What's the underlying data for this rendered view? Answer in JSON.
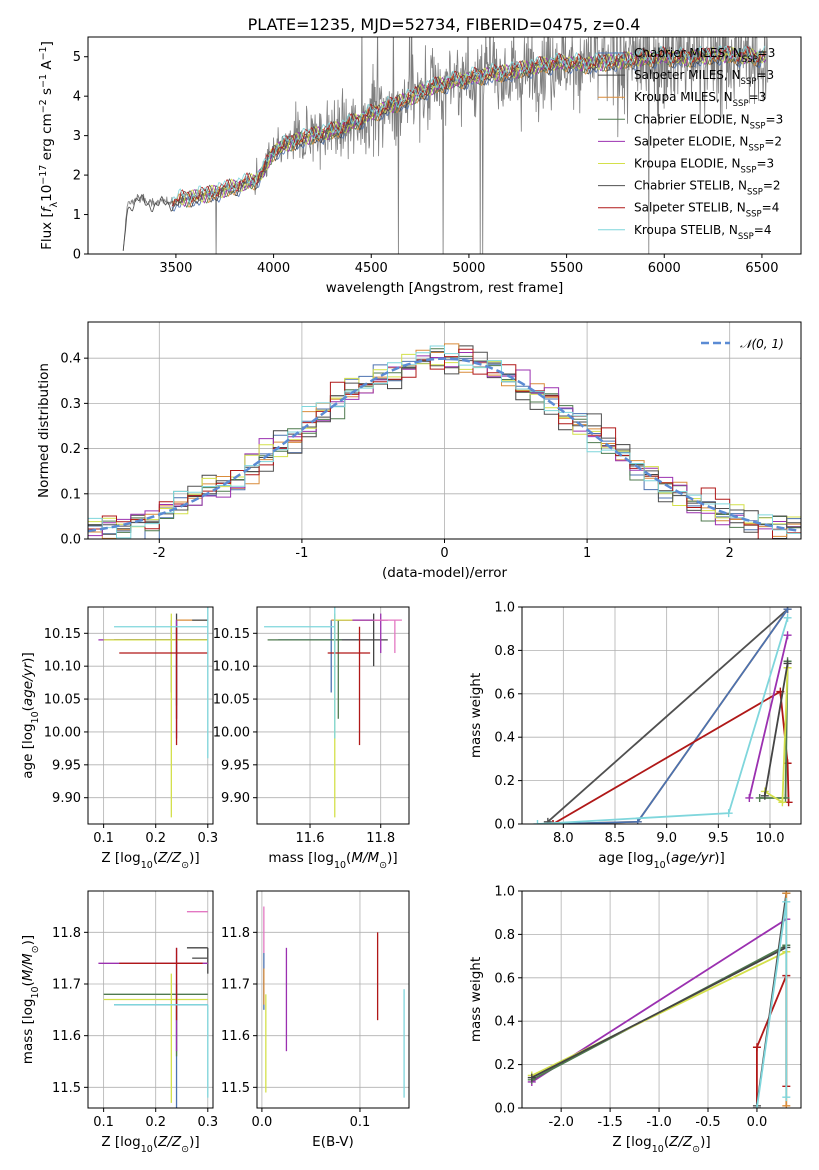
{
  "figure": {
    "title": "PLATE=1235, MJD=52734, FIBERID=0475, z=0.4"
  },
  "series": [
    {
      "name": "Chabrier MILES, N_SSP=3",
      "label_main": "Chabrier MILES, N",
      "label_sub": "SSP",
      "label_end": "=3",
      "color": "#4c72b0"
    },
    {
      "name": "Salpeter MILES, N_SSP=3",
      "label_main": "Salpeter MILES, N",
      "label_sub": "SSP",
      "label_end": "=3",
      "color": "#444444"
    },
    {
      "name": "Kroupa MILES, N_SSP=3",
      "label_main": "Kroupa MILES, N",
      "label_sub": "SSP",
      "label_end": "=3",
      "color": "#d98c3a"
    },
    {
      "name": "Chabrier ELODIE, N_SSP=3",
      "label_main": "Chabrier ELODIE, N",
      "label_sub": "SSP",
      "label_end": "=3",
      "color": "#4f7a4f"
    },
    {
      "name": "Salpeter ELODIE, N_SSP=2",
      "label_main": "Salpeter ELODIE, N",
      "label_sub": "SSP",
      "label_end": "=2",
      "color": "#9b30b0"
    },
    {
      "name": "Kroupa ELODIE, N_SSP=3",
      "label_main": "Kroupa ELODIE, N",
      "label_sub": "SSP",
      "label_end": "=3",
      "color": "#d4e04a"
    },
    {
      "name": "Chabrier STELIB, N_SSP=2",
      "label_main": "Chabrier STELIB, N",
      "label_sub": "SSP",
      "label_end": "=2",
      "color": "#505050"
    },
    {
      "name": "Salpeter STELIB, N_SSP=4",
      "label_main": "Salpeter STELIB, N",
      "label_sub": "SSP",
      "label_end": "=4",
      "color": "#b01818"
    },
    {
      "name": "Kroupa STELIB, N_SSP=4",
      "label_main": "Kroupa STELIB, N",
      "label_sub": "SSP",
      "label_end": "=4",
      "color": "#7fd6dc"
    }
  ],
  "chart_data": [
    {
      "id": "spectrum",
      "type": "line",
      "xlabel": "wavelength [Angstrom, rest frame]",
      "ylabel": "Flux [f_λ 10^-17 erg cm^-2 s^-1 A^-1]",
      "xlim": [
        3050,
        6700
      ],
      "ylim": [
        0,
        5.5
      ],
      "xticks": [
        3500,
        4000,
        4500,
        5000,
        5500,
        6000,
        6500
      ],
      "yticks": [
        0,
        1,
        2,
        3,
        4,
        5
      ],
      "grid": false,
      "legend": "top-right",
      "continuum_points": [
        [
          3230,
          0
        ],
        [
          3250,
          1.25
        ],
        [
          3300,
          1.4
        ],
        [
          3400,
          1.3
        ],
        [
          3500,
          1.35
        ],
        [
          3600,
          1.45
        ],
        [
          3700,
          1.55
        ],
        [
          3800,
          1.7
        ],
        [
          3900,
          1.85
        ],
        [
          3950,
          2.1
        ],
        [
          4000,
          2.6
        ],
        [
          4100,
          2.85
        ],
        [
          4200,
          3.0
        ],
        [
          4300,
          3.1
        ],
        [
          4400,
          3.3
        ],
        [
          4500,
          3.55
        ],
        [
          4600,
          3.75
        ],
        [
          4700,
          3.95
        ],
        [
          4800,
          4.2
        ],
        [
          4900,
          4.35
        ],
        [
          5000,
          4.45
        ],
        [
          5100,
          4.55
        ],
        [
          5200,
          4.6
        ],
        [
          5300,
          4.7
        ],
        [
          5400,
          4.8
        ],
        [
          5500,
          4.85
        ],
        [
          5600,
          4.8
        ],
        [
          5700,
          4.85
        ],
        [
          5800,
          4.9
        ],
        [
          5900,
          4.95
        ],
        [
          6000,
          5.0
        ],
        [
          6100,
          4.95
        ],
        [
          6200,
          5.0
        ],
        [
          6300,
          5.05
        ],
        [
          6400,
          5.0
        ],
        [
          6500,
          5.0
        ]
      ]
    },
    {
      "id": "residuals",
      "type": "line",
      "xlabel": "(data-model)/error",
      "ylabel": "Normed distribution",
      "xlim": [
        -2.5,
        2.5
      ],
      "ylim": [
        0,
        0.48
      ],
      "xticks": [
        -2,
        -1,
        0,
        1,
        2
      ],
      "yticks": [
        0.0,
        0.1,
        0.2,
        0.3,
        0.4
      ],
      "grid": true,
      "legend": "top-right",
      "normal_label": "𝒩(0, 1)",
      "normal_color": "#5b8bd4"
    },
    {
      "id": "age-vs-Z",
      "type": "scatter",
      "xlabel": "Z [log10(Z/Z⊙)]",
      "ylabel": "age  [log10(age/yr)]",
      "xlim": [
        0.07,
        0.31
      ],
      "ylim": [
        9.86,
        10.19
      ],
      "xticks": [
        0.1,
        0.2,
        0.3
      ],
      "yticks": [
        9.9,
        9.95,
        10.0,
        10.05,
        10.1,
        10.15
      ],
      "grid": true,
      "points": [
        {
          "series": 0,
          "x": 0.23,
          "y": 10.14,
          "xerr": [
            0.11,
            0.07
          ],
          "yerr": [
            0.08,
            0.03
          ]
        },
        {
          "series": 1,
          "x": 0.24,
          "y": 10.14,
          "xerr": [
            0.1,
            0.06
          ],
          "yerr": [
            0.12,
            0.04
          ]
        },
        {
          "series": 2,
          "x": 0.29,
          "y": 10.17,
          "xerr": [
            0.05,
            0.01
          ],
          "yerr": [
            0.0,
            0.0
          ]
        },
        {
          "series": 3,
          "x": 0.24,
          "y": 10.14,
          "xerr": [
            0.12,
            0.06
          ],
          "yerr": [
            0.1,
            0.03
          ]
        },
        {
          "series": 4,
          "x": 0.24,
          "y": 10.14,
          "xerr": [
            0.15,
            0.06
          ],
          "yerr": [
            0.15,
            0.03
          ]
        },
        {
          "series": 5,
          "x": 0.23,
          "y": 10.14,
          "xerr": [
            0.13,
            0.07
          ],
          "yerr": [
            0.27,
            0.04
          ]
        },
        {
          "series": 6,
          "x": 0.3,
          "y": 10.17,
          "xerr": [
            0.03,
            0.0
          ],
          "yerr": [
            0.0,
            0.0
          ]
        },
        {
          "series": 7,
          "x": 0.24,
          "y": 10.12,
          "xerr": [
            0.11,
            0.06
          ],
          "yerr": [
            0.14,
            0.04
          ]
        },
        {
          "series": 8,
          "x": 0.3,
          "y": 10.16,
          "xerr": [
            0.18,
            0.0
          ],
          "yerr": [
            0.2,
            0.03
          ]
        }
      ]
    },
    {
      "id": "age-vs-mass",
      "type": "scatter",
      "xlabel": "mass [log10(M/M⊙)]",
      "ylabel": "",
      "xlim": [
        11.45,
        11.88
      ],
      "ylim": [
        9.86,
        10.19
      ],
      "xticks": [
        11.6,
        11.8
      ],
      "yticks": [
        9.9,
        9.95,
        10.0,
        10.05,
        10.1,
        10.15
      ],
      "grid": true,
      "points": [
        {
          "series": 0,
          "x": 11.66,
          "y": 10.14,
          "xerr": [
            0.15,
            0.08
          ],
          "yerr": [
            0.08,
            0.03
          ]
        },
        {
          "series": 1,
          "x": 11.78,
          "y": 10.14,
          "xerr": [
            0.1,
            0.04
          ],
          "yerr": [
            0.04,
            0.04
          ]
        },
        {
          "series": 2,
          "x": 11.79,
          "y": 10.17,
          "xerr": [
            0.13,
            0.02
          ],
          "yerr": [
            0.0,
            0.0
          ]
        },
        {
          "series": 3,
          "x": 11.68,
          "y": 10.14,
          "xerr": [
            0.2,
            0.01
          ],
          "yerr": [
            0.12,
            0.03
          ]
        },
        {
          "series": 4,
          "x": 11.8,
          "y": 10.17,
          "xerr": [
            0.12,
            0.02
          ],
          "yerr": [
            0.05,
            0.01
          ]
        },
        {
          "series": 5,
          "x": 11.67,
          "y": 10.17,
          "xerr": [
            0.0,
            0.05
          ],
          "yerr": [
            0.3,
            0.01
          ]
        },
        {
          "series": 6,
          "x": 11.8,
          "y": 10.17,
          "xerr": [
            0.0,
            0.0
          ],
          "yerr": [
            0.0,
            0.0
          ]
        },
        {
          "series": 7,
          "x": 11.74,
          "y": 10.12,
          "xerr": [
            0.09,
            0.03
          ],
          "yerr": [
            0.14,
            0.04
          ]
        },
        {
          "series": 8,
          "x": 11.67,
          "y": 10.16,
          "xerr": [
            0.2,
            0.0
          ],
          "yerr": [
            0.17,
            0.03
          ]
        }
      ],
      "extra_points": [
        {
          "color": "#e377c2",
          "x": 11.84,
          "y": 10.17,
          "xerr": [
            0.06,
            0.02
          ],
          "yerr": [
            0.05,
            0.0
          ]
        }
      ]
    },
    {
      "id": "massweight-vs-age",
      "type": "line",
      "xlabel": "age  [log10(age/yr)]",
      "ylabel": "mass weight",
      "xlim": [
        7.6,
        10.3
      ],
      "ylim": [
        0,
        1.0
      ],
      "xticks": [
        8.0,
        8.5,
        9.0,
        9.5,
        10.0
      ],
      "yticks": [
        0.0,
        0.2,
        0.4,
        0.6,
        0.8,
        1.0
      ],
      "grid": true,
      "lines": [
        {
          "series": 6,
          "points": [
            [
              7.85,
              0.01
            ],
            [
              10.17,
              0.99
            ]
          ]
        },
        {
          "series": 2,
          "points": [
            [
              7.9,
              0.0
            ],
            [
              8.72,
              0.01
            ],
            [
              10.17,
              0.99
            ]
          ]
        },
        {
          "series": 0,
          "points": [
            [
              7.9,
              0.0
            ],
            [
              8.72,
              0.01
            ],
            [
              10.17,
              0.99
            ]
          ]
        },
        {
          "series": 7,
          "points": [
            [
              7.9,
              0.0
            ],
            [
              10.1,
              0.61
            ],
            [
              10.17,
              0.28
            ],
            [
              10.18,
              0.1
            ]
          ]
        },
        {
          "series": 8,
          "points": [
            [
              7.75,
              0.0
            ],
            [
              9.6,
              0.05
            ],
            [
              10.17,
              0.95
            ]
          ]
        },
        {
          "series": 4,
          "points": [
            [
              9.8,
              0.12
            ],
            [
              10.17,
              0.87
            ]
          ]
        },
        {
          "series": 3,
          "points": [
            [
              9.9,
              0.12
            ],
            [
              10.15,
              0.12
            ],
            [
              10.17,
              0.75
            ]
          ]
        },
        {
          "series": 5,
          "points": [
            [
              9.95,
              0.15
            ],
            [
              10.12,
              0.1
            ],
            [
              10.17,
              0.72
            ]
          ]
        },
        {
          "series": 1,
          "points": [
            [
              9.95,
              0.13
            ],
            [
              10.17,
              0.74
            ]
          ]
        }
      ]
    },
    {
      "id": "mass-vs-Z",
      "type": "scatter",
      "xlabel": "Z [log10(Z/Z⊙)]",
      "ylabel": "mass [log10(M/M⊙)]",
      "xlim": [
        0.07,
        0.31
      ],
      "ylim": [
        11.46,
        11.88
      ],
      "xticks": [
        0.1,
        0.2,
        0.3
      ],
      "yticks": [
        11.5,
        11.6,
        11.7,
        11.8
      ],
      "grid": true,
      "points": [
        {
          "series": 0,
          "x": 0.24,
          "y": 11.66,
          "xerr": [
            0.12,
            0.06
          ],
          "yerr": [
            0.2,
            0.02
          ]
        },
        {
          "series": 1,
          "x": 0.3,
          "y": 11.77,
          "xerr": [
            0.04,
            0.0
          ],
          "yerr": [
            0.05,
            0.0
          ]
        },
        {
          "series": 2,
          "x": 0.29,
          "y": 11.74,
          "xerr": [
            0.05,
            0.01
          ],
          "yerr": [
            0.0,
            0.0
          ]
        },
        {
          "series": 3,
          "x": 0.24,
          "y": 11.68,
          "xerr": [
            0.14,
            0.06
          ],
          "yerr": [
            0.12,
            0.02
          ]
        },
        {
          "series": 4,
          "x": 0.24,
          "y": 11.74,
          "xerr": [
            0.15,
            0.06
          ],
          "yerr": [
            0.17,
            0.03
          ]
        },
        {
          "series": 5,
          "x": 0.23,
          "y": 11.67,
          "xerr": [
            0.13,
            0.07
          ],
          "yerr": [
            0.2,
            0.05
          ]
        },
        {
          "series": 6,
          "x": 0.3,
          "y": 11.75,
          "xerr": [
            0.03,
            0.0
          ],
          "yerr": [
            0.0,
            0.0
          ]
        },
        {
          "series": 7,
          "x": 0.24,
          "y": 11.74,
          "xerr": [
            0.11,
            0.05
          ],
          "yerr": [
            0.11,
            0.03
          ]
        },
        {
          "series": 8,
          "x": 0.3,
          "y": 11.66,
          "xerr": [
            0.18,
            0.0
          ],
          "yerr": [
            0.18,
            0.0
          ]
        }
      ],
      "extra_points": [
        {
          "color": "#e377c2",
          "x": 0.3,
          "y": 11.84,
          "xerr": [
            0.04,
            0.0
          ],
          "yerr": [
            0.0,
            0.0
          ]
        }
      ]
    },
    {
      "id": "mass-vs-ebv",
      "type": "scatter",
      "xlabel": "E(B-V)",
      "ylabel": "",
      "xlim": [
        -0.005,
        0.15
      ],
      "ylim": [
        11.46,
        11.88
      ],
      "xticks": [
        0.0,
        0.1
      ],
      "yticks": [
        11.5,
        11.6,
        11.7,
        11.8
      ],
      "grid": true,
      "points": [
        {
          "series": 0,
          "x": 0.002,
          "y": 11.72,
          "xerr": [
            0.0,
            0.0
          ],
          "yerr": [
            0.07,
            0.04
          ]
        },
        {
          "series": 2,
          "x": 0.002,
          "y": 11.7,
          "xerr": [
            0.0,
            0.0
          ],
          "yerr": [
            0.04,
            0.03
          ]
        },
        {
          "series": 4,
          "x": 0.025,
          "y": 11.67,
          "xerr": [
            0.0,
            0.0
          ],
          "yerr": [
            0.1,
            0.1
          ]
        },
        {
          "series": 5,
          "x": 0.004,
          "y": 11.59,
          "xerr": [
            0.0,
            0.0
          ],
          "yerr": [
            0.1,
            0.09
          ]
        },
        {
          "series": 7,
          "x": 0.118,
          "y": 11.71,
          "xerr": [
            0.0,
            0.0
          ],
          "yerr": [
            0.08,
            0.09
          ]
        },
        {
          "series": 8,
          "x": 0.145,
          "y": 11.58,
          "xerr": [
            0.0,
            0.0
          ],
          "yerr": [
            0.1,
            0.11
          ]
        }
      ],
      "extra_points": [
        {
          "color": "#e377c2",
          "x": 0.002,
          "y": 11.8,
          "xerr": [
            0.0,
            0.0
          ],
          "yerr": [
            0.04,
            0.05
          ]
        }
      ]
    },
    {
      "id": "massweight-vs-Z",
      "type": "line",
      "xlabel": "Z [log10(Z/Z⊙)]",
      "ylabel": "mass weight",
      "xlim": [
        -2.4,
        0.45
      ],
      "ylim": [
        0,
        1.0
      ],
      "xticks": [
        -2.0,
        -1.5,
        -1.0,
        -0.5,
        0.0
      ],
      "yticks": [
        0.0,
        0.2,
        0.4,
        0.6,
        0.8,
        1.0
      ],
      "grid": true,
      "lines": [
        {
          "series": 4,
          "points": [
            [
              -2.3,
              0.12
            ],
            [
              0.3,
              0.87
            ]
          ]
        },
        {
          "series": 3,
          "points": [
            [
              -2.3,
              0.13
            ],
            [
              0.3,
              0.75
            ]
          ]
        },
        {
          "series": 5,
          "points": [
            [
              -2.3,
              0.15
            ],
            [
              0.3,
              0.72
            ]
          ]
        },
        {
          "series": 1,
          "points": [
            [
              -2.3,
              0.14
            ],
            [
              0.3,
              0.74
            ]
          ]
        },
        {
          "series": 7,
          "points": [
            [
              0.0,
              0.0
            ],
            [
              0.0,
              0.28
            ],
            [
              0.3,
              0.61
            ],
            [
              0.3,
              0.1
            ]
          ]
        },
        {
          "series": 6,
          "points": [
            [
              0.0,
              0.01
            ],
            [
              0.3,
              0.99
            ]
          ]
        },
        {
          "series": 2,
          "points": [
            [
              0.3,
              0.01
            ],
            [
              0.3,
              0.99
            ]
          ]
        },
        {
          "series": 8,
          "points": [
            [
              0.0,
              0.0
            ],
            [
              0.3,
              0.95
            ],
            [
              0.3,
              0.05
            ]
          ]
        }
      ]
    }
  ]
}
